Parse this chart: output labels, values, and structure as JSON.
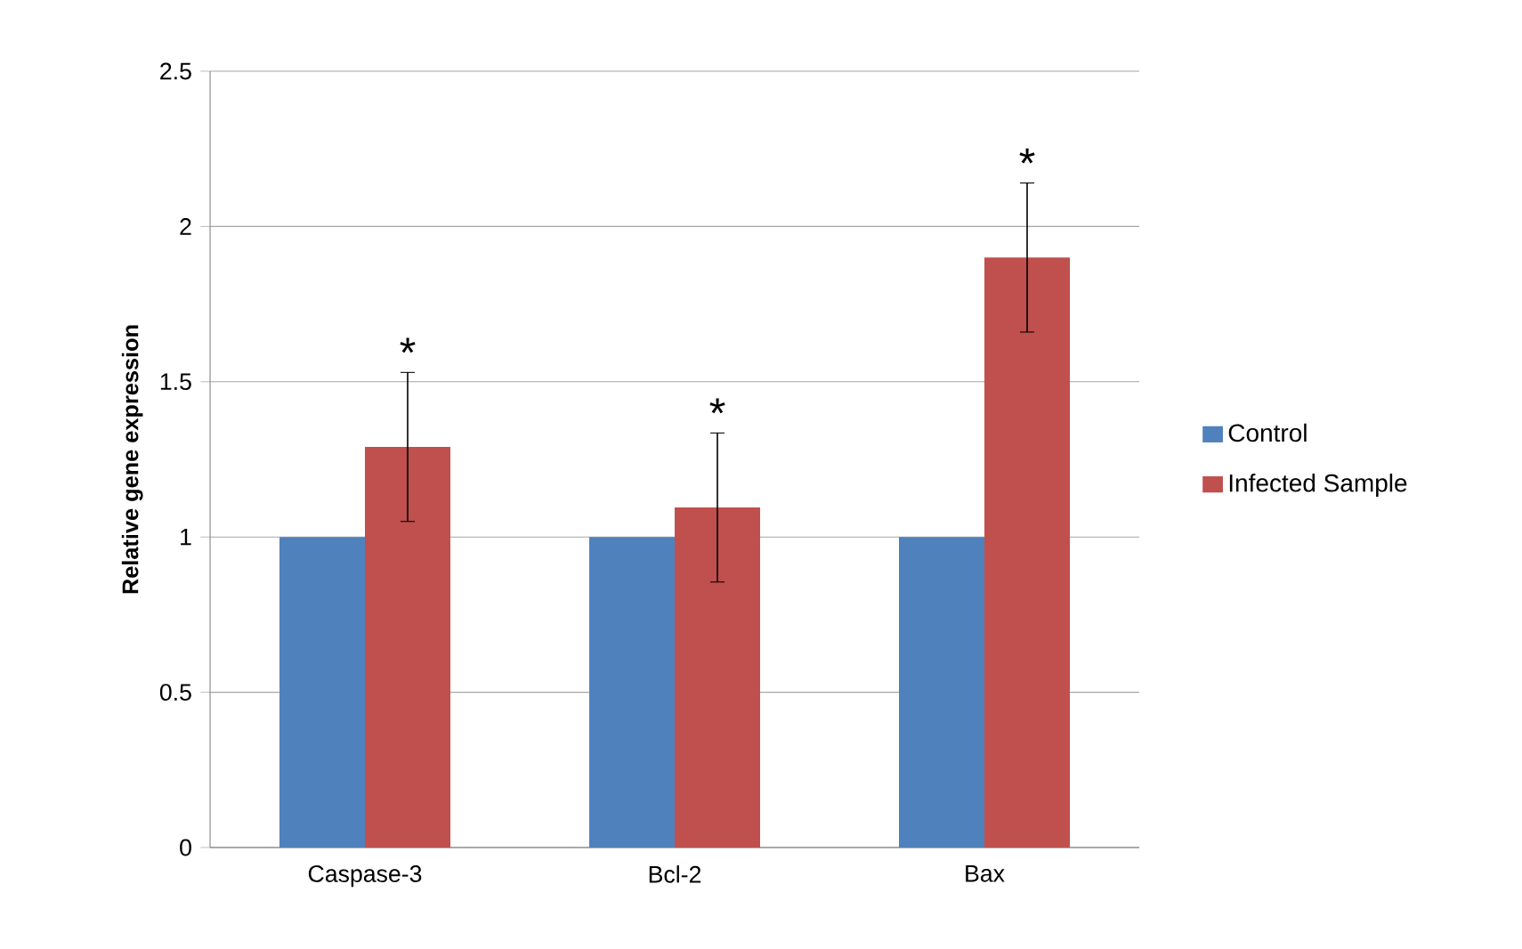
{
  "chart_data": {
    "type": "bar",
    "ylabel": "Relative gene expression",
    "categories": [
      "Caspase-3",
      "Bcl-2",
      "Bax"
    ],
    "series": [
      {
        "name": "Control",
        "color": "#4f81bd",
        "values": [
          1,
          1,
          1
        ]
      },
      {
        "name": "Infected Sample",
        "color": "#c0504d",
        "values": [
          1.29,
          1.095,
          1.9
        ],
        "errors": [
          0.24,
          0.24,
          0.24
        ]
      }
    ],
    "ylim": [
      0,
      2.5
    ],
    "yticks": [
      0,
      0.5,
      1,
      1.5,
      2,
      2.5
    ],
    "grid": "y",
    "legend": "right",
    "annotations": [
      "*",
      "*",
      "*"
    ]
  }
}
